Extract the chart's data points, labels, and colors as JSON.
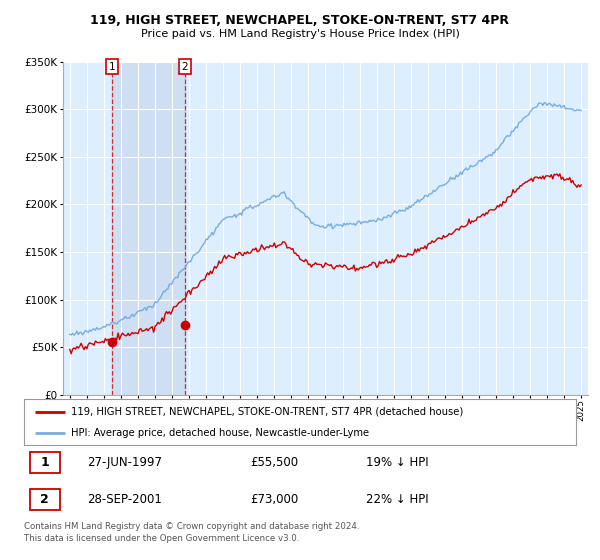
{
  "title": "119, HIGH STREET, NEWCHAPEL, STOKE-ON-TRENT, ST7 4PR",
  "subtitle": "Price paid vs. HM Land Registry's House Price Index (HPI)",
  "legend_line1": "119, HIGH STREET, NEWCHAPEL, STOKE-ON-TRENT, ST7 4PR (detached house)",
  "legend_line2": "HPI: Average price, detached house, Newcastle-under-Lyme",
  "footer": "Contains HM Land Registry data © Crown copyright and database right 2024.\nThis data is licensed under the Open Government Licence v3.0.",
  "purchase1_date": 1997.49,
  "purchase1_label": "27-JUN-1997",
  "purchase1_price": 55500,
  "purchase1_pct": "19% ↓ HPI",
  "purchase2_date": 2001.74,
  "purchase2_label": "28-SEP-2001",
  "purchase2_price": 73000,
  "purchase2_pct": "22% ↓ HPI",
  "hpi_color": "#7aaddc",
  "price_color": "#cc0000",
  "shade_color": "#ddeeff",
  "background_color": "#ddeeff",
  "grid_color": "#ffffff",
  "outer_bg": "#ffffff",
  "ylim": [
    0,
    350000
  ],
  "xlim_start": 1994.6,
  "xlim_end": 2025.4
}
